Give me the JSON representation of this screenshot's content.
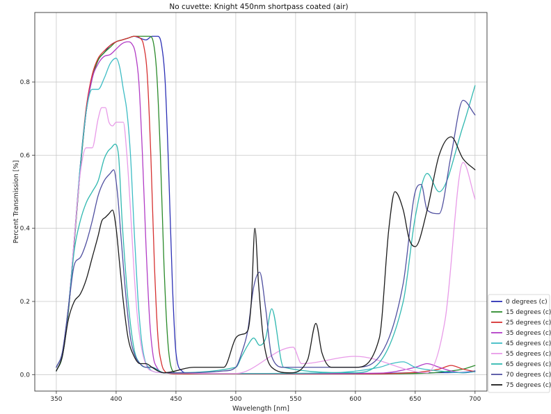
{
  "chart_data": {
    "type": "line",
    "title": "No cuvette: Knight 450nm shortpass coated (air)",
    "xlabel": "Wavelength [nm]",
    "ylabel": "Percent Transmission [%]",
    "xlim": [
      332,
      710
    ],
    "ylim": [
      -0.045,
      0.99
    ],
    "xticks": [
      350,
      400,
      450,
      500,
      550,
      600,
      650,
      700
    ],
    "yticks": [
      0.0,
      0.2,
      0.4,
      0.6,
      0.8
    ],
    "ytick_labels": [
      "0.0",
      "0.2",
      "0.4",
      "0.6",
      "0.8"
    ],
    "grid": true,
    "legend_position": "lower-right",
    "series": [
      {
        "name": "0 degrees (c)",
        "color": "#2b2fb5",
        "x": [
          350,
          355,
          360,
          365,
          370,
          375,
          380,
          385,
          390,
          395,
          400,
          405,
          410,
          415,
          420,
          425,
          430,
          435,
          438,
          441,
          444,
          447,
          450,
          455,
          460,
          470,
          500,
          600,
          650,
          690,
          700
        ],
        "y": [
          0.01,
          0.05,
          0.17,
          0.36,
          0.56,
          0.72,
          0.81,
          0.86,
          0.88,
          0.9,
          0.91,
          0.915,
          0.92,
          0.925,
          0.92,
          0.915,
          0.925,
          0.925,
          0.9,
          0.8,
          0.55,
          0.25,
          0.06,
          0.01,
          0.004,
          0.002,
          0.002,
          0.002,
          0.005,
          0.006,
          0.01
        ]
      },
      {
        "name": "15 degrees (c)",
        "color": "#2a8a2a",
        "x": [
          350,
          355,
          360,
          365,
          370,
          375,
          380,
          385,
          390,
          395,
          400,
          405,
          410,
          415,
          420,
          425,
          428,
          431,
          434,
          437,
          440,
          443,
          446,
          450,
          460,
          500,
          600,
          660,
          680,
          690,
          700
        ],
        "y": [
          0.01,
          0.05,
          0.17,
          0.36,
          0.56,
          0.72,
          0.81,
          0.86,
          0.88,
          0.895,
          0.91,
          0.915,
          0.92,
          0.925,
          0.925,
          0.925,
          0.925,
          0.91,
          0.82,
          0.6,
          0.3,
          0.1,
          0.02,
          0.005,
          0.002,
          0.002,
          0.002,
          0.004,
          0.01,
          0.015,
          0.025
        ]
      },
      {
        "name": "25 degrees (c)",
        "color": "#d63030",
        "x": [
          350,
          355,
          360,
          365,
          370,
          375,
          380,
          385,
          390,
          395,
          400,
          405,
          410,
          415,
          420,
          423,
          426,
          429,
          432,
          435,
          438,
          441,
          445,
          450,
          500,
          600,
          650,
          670,
          680,
          690,
          700
        ],
        "y": [
          0.02,
          0.06,
          0.18,
          0.37,
          0.57,
          0.73,
          0.82,
          0.865,
          0.885,
          0.9,
          0.91,
          0.915,
          0.92,
          0.925,
          0.92,
          0.9,
          0.82,
          0.6,
          0.3,
          0.1,
          0.03,
          0.008,
          0.003,
          0.002,
          0.002,
          0.002,
          0.006,
          0.015,
          0.025,
          0.015,
          0.008
        ]
      },
      {
        "name": "35 degrees (c)",
        "color": "#b23cc6",
        "x": [
          350,
          355,
          360,
          365,
          370,
          375,
          380,
          385,
          390,
          395,
          400,
          405,
          410,
          413,
          416,
          419,
          422,
          425,
          428,
          431,
          434,
          440,
          500,
          560,
          620,
          650,
          660,
          670,
          680,
          690,
          700
        ],
        "y": [
          0.02,
          0.06,
          0.18,
          0.37,
          0.57,
          0.72,
          0.81,
          0.85,
          0.87,
          0.875,
          0.89,
          0.905,
          0.91,
          0.905,
          0.88,
          0.8,
          0.6,
          0.35,
          0.15,
          0.05,
          0.02,
          0.005,
          0.003,
          0.003,
          0.004,
          0.02,
          0.03,
          0.02,
          0.01,
          0.005,
          0.008
        ]
      },
      {
        "name": "45 degrees (c)",
        "color": "#3cbcc4",
        "x": [
          350,
          355,
          360,
          365,
          370,
          375,
          380,
          385,
          390,
          395,
          400,
          403,
          406,
          409,
          412,
          415,
          418,
          421,
          424,
          427,
          430,
          440,
          500,
          580,
          620,
          630,
          640,
          650,
          670,
          690,
          700
        ],
        "y": [
          0.02,
          0.06,
          0.18,
          0.37,
          0.57,
          0.72,
          0.78,
          0.78,
          0.81,
          0.85,
          0.865,
          0.84,
          0.78,
          0.72,
          0.6,
          0.4,
          0.22,
          0.1,
          0.04,
          0.02,
          0.01,
          0.005,
          0.003,
          0.005,
          0.02,
          0.03,
          0.035,
          0.02,
          0.01,
          0.005,
          0.008
        ]
      },
      {
        "name": "55 degrees (c)",
        "color": "#e89ae8",
        "x": [
          350,
          355,
          360,
          365,
          370,
          375,
          380,
          385,
          388,
          391,
          394,
          397,
          400,
          403,
          406,
          409,
          412,
          415,
          418,
          422,
          426,
          430,
          440,
          500,
          548,
          555,
          600,
          660,
          675,
          690,
          700
        ],
        "y": [
          0.02,
          0.06,
          0.18,
          0.37,
          0.55,
          0.62,
          0.62,
          0.7,
          0.73,
          0.73,
          0.69,
          0.68,
          0.69,
          0.69,
          0.69,
          0.6,
          0.45,
          0.28,
          0.15,
          0.06,
          0.02,
          0.01,
          0.005,
          0.003,
          0.075,
          0.03,
          0.05,
          0.005,
          0.15,
          0.58,
          0.48
        ]
      },
      {
        "name": "65 degrees (c)",
        "color": "#30b8b0",
        "x": [
          350,
          355,
          360,
          365,
          370,
          375,
          380,
          385,
          390,
          393,
          396,
          399,
          402,
          405,
          410,
          415,
          420,
          425,
          430,
          440,
          500,
          505,
          510,
          515,
          520,
          525,
          530,
          540,
          600,
          640,
          650,
          660,
          670,
          690,
          700
        ],
        "y": [
          0.02,
          0.06,
          0.18,
          0.34,
          0.42,
          0.47,
          0.5,
          0.53,
          0.59,
          0.61,
          0.62,
          0.63,
          0.6,
          0.42,
          0.2,
          0.07,
          0.03,
          0.02,
          0.02,
          0.005,
          0.02,
          0.05,
          0.08,
          0.1,
          0.08,
          0.1,
          0.18,
          0.02,
          0.005,
          0.2,
          0.43,
          0.55,
          0.5,
          0.68,
          0.79
        ]
      },
      {
        "name": "70 degrees (c)",
        "color": "#5050a0",
        "x": [
          350,
          355,
          360,
          365,
          370,
          375,
          380,
          385,
          390,
          395,
          398,
          401,
          404,
          408,
          412,
          416,
          420,
          425,
          430,
          435,
          440,
          460,
          490,
          500,
          505,
          510,
          515,
          520,
          525,
          530,
          540,
          600,
          620,
          640,
          650,
          655,
          660,
          670,
          680,
          690,
          700
        ],
        "y": [
          0.02,
          0.06,
          0.18,
          0.3,
          0.32,
          0.36,
          0.42,
          0.49,
          0.53,
          0.55,
          0.56,
          0.5,
          0.38,
          0.22,
          0.1,
          0.05,
          0.03,
          0.02,
          0.02,
          0.01,
          0.005,
          0.005,
          0.01,
          0.02,
          0.06,
          0.12,
          0.24,
          0.28,
          0.18,
          0.05,
          0.02,
          0.02,
          0.05,
          0.25,
          0.5,
          0.52,
          0.45,
          0.44,
          0.6,
          0.75,
          0.71
        ]
      },
      {
        "name": "75 degrees (c)",
        "color": "#1a1a1a",
        "x": [
          350,
          355,
          360,
          365,
          370,
          375,
          380,
          385,
          388,
          391,
          394,
          397,
          400,
          403,
          406,
          410,
          415,
          420,
          425,
          430,
          435,
          440,
          465,
          490,
          500,
          505,
          510,
          513,
          516,
          519,
          523,
          530,
          545,
          560,
          567,
          572,
          580,
          600,
          620,
          628,
          633,
          640,
          645,
          650,
          660,
          670,
          680,
          690,
          700
        ],
        "y": [
          0.01,
          0.05,
          0.15,
          0.2,
          0.22,
          0.26,
          0.32,
          0.38,
          0.42,
          0.43,
          0.44,
          0.45,
          0.4,
          0.3,
          0.2,
          0.1,
          0.05,
          0.03,
          0.03,
          0.02,
          0.01,
          0.005,
          0.02,
          0.02,
          0.1,
          0.11,
          0.12,
          0.2,
          0.4,
          0.25,
          0.1,
          0.02,
          0.005,
          0.04,
          0.14,
          0.06,
          0.02,
          0.02,
          0.1,
          0.4,
          0.5,
          0.45,
          0.37,
          0.35,
          0.45,
          0.6,
          0.65,
          0.59,
          0.56
        ]
      }
    ]
  }
}
